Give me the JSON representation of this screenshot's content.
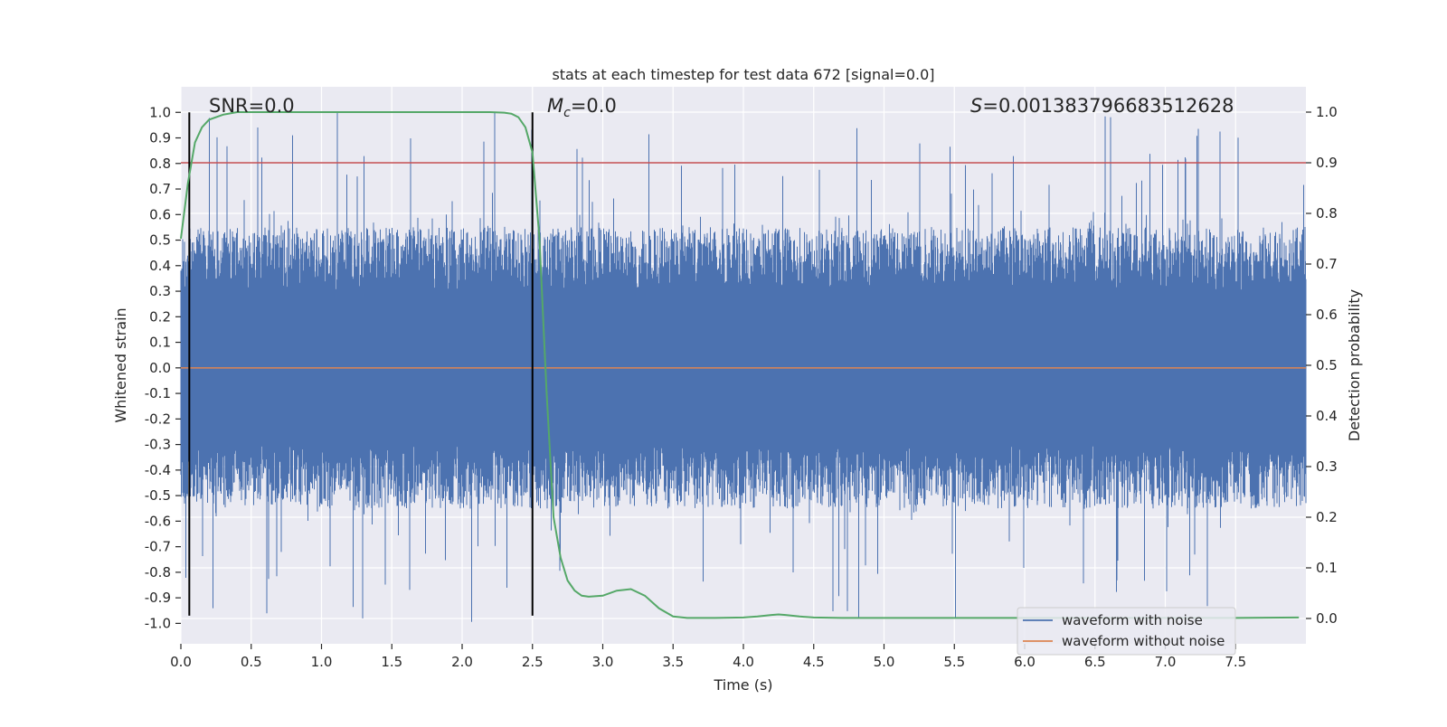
{
  "chart_data": {
    "type": "line",
    "title": "stats at each timestep for test data 672 [signal=0.0]",
    "xlabel": "Time (s)",
    "ylabel": "Whitened strain",
    "ylabel_right": "Detection probability",
    "xlim": [
      0.0,
      8.0
    ],
    "ylim": [
      -1.08,
      1.1
    ],
    "ylim_right": [
      -0.05,
      1.05
    ],
    "x_ticks": [
      0.0,
      0.5,
      1.0,
      1.5,
      2.0,
      2.5,
      3.0,
      3.5,
      4.0,
      4.5,
      5.0,
      5.5,
      6.0,
      6.5,
      7.0,
      7.5
    ],
    "x_tick_labels": [
      "0.0",
      "0.5",
      "1.0",
      "1.5",
      "2.0",
      "2.5",
      "3.0",
      "3.5",
      "4.0",
      "4.5",
      "5.0",
      "5.5",
      "6.0",
      "6.5",
      "7.0",
      "7.5"
    ],
    "y_ticks": [
      1.0,
      0.9,
      0.8,
      0.7,
      0.6,
      0.5,
      0.4,
      0.3,
      0.2,
      0.1,
      0.0,
      -0.1,
      -0.2,
      -0.3,
      -0.4,
      -0.5,
      -0.6,
      -0.7,
      -0.8,
      -0.9,
      -1.0
    ],
    "y_tick_labels": [
      "1.0",
      "0.9",
      "0.8",
      "0.7",
      "0.6",
      "0.5",
      "0.4",
      "0.3",
      "0.2",
      "0.1",
      "0.0",
      "-0.1",
      "-0.2",
      "-0.3",
      "-0.4",
      "-0.5",
      "-0.6",
      "-0.7",
      "-0.8",
      "-0.9",
      "-1.0"
    ],
    "y_ticks_right": [
      1.0,
      0.9,
      0.8,
      0.7,
      0.6,
      0.5,
      0.4,
      0.3,
      0.2,
      0.1,
      0.0
    ],
    "y_tick_labels_right": [
      "1.0",
      "0.9",
      "0.8",
      "0.7",
      "0.6",
      "0.5",
      "0.4",
      "0.3",
      "0.2",
      "0.1",
      "0.0"
    ],
    "grid": true,
    "legend_position": "lower-right",
    "series": [
      {
        "name": "waveform with noise",
        "color": "#4c72b0",
        "description_values": "dense noise roughly within -0.6..0.6 with spikes up to about ±1.0",
        "envelope_typical": 0.55,
        "peak_max": 1.0
      },
      {
        "name": "waveform without noise",
        "color": "#dd8452",
        "values_constant": 0.0
      },
      {
        "color": "#55a868",
        "axis": "right",
        "x": [
          0.0,
          0.05,
          0.1,
          0.15,
          0.2,
          0.3,
          0.4,
          0.5,
          1.0,
          1.5,
          2.0,
          2.2,
          2.3,
          2.35,
          2.4,
          2.45,
          2.5,
          2.55,
          2.6,
          2.65,
          2.7,
          2.75,
          2.8,
          2.85,
          2.9,
          3.0,
          3.1,
          3.2,
          3.3,
          3.4,
          3.5,
          3.6,
          3.8,
          4.0,
          4.1,
          4.2,
          4.25,
          4.3,
          4.4,
          4.5,
          4.7,
          5.0,
          6.0,
          7.0,
          7.5,
          7.95
        ],
        "values": [
          0.75,
          0.86,
          0.94,
          0.97,
          0.985,
          0.995,
          1.0,
          1.0,
          1.0,
          1.0,
          1.0,
          1.0,
          0.999,
          0.997,
          0.99,
          0.97,
          0.92,
          0.75,
          0.45,
          0.2,
          0.12,
          0.075,
          0.055,
          0.045,
          0.043,
          0.045,
          0.055,
          0.058,
          0.045,
          0.02,
          0.004,
          0.001,
          0.001,
          0.002,
          0.004,
          0.007,
          0.008,
          0.007,
          0.004,
          0.002,
          0.001,
          0.001,
          0.001,
          0.001,
          0.001,
          0.002
        ]
      }
    ],
    "threshold_line": {
      "value_right": 0.9,
      "color": "#c44e52"
    },
    "vertical_markers": [
      0.06,
      2.5
    ],
    "marker_y_range": [
      -0.97,
      1.0
    ],
    "annotations": [
      {
        "x": 0.2,
        "y": 1.03,
        "label": "SNR=0.0"
      },
      {
        "x": 2.6,
        "y": 1.03,
        "label_symbol": "M",
        "label_subscript": "c",
        "label_value": "=0.0"
      },
      {
        "x": 5.6,
        "y": 1.03,
        "label_symbol": "S",
        "label_value": "=0.001383796683512628"
      }
    ]
  }
}
